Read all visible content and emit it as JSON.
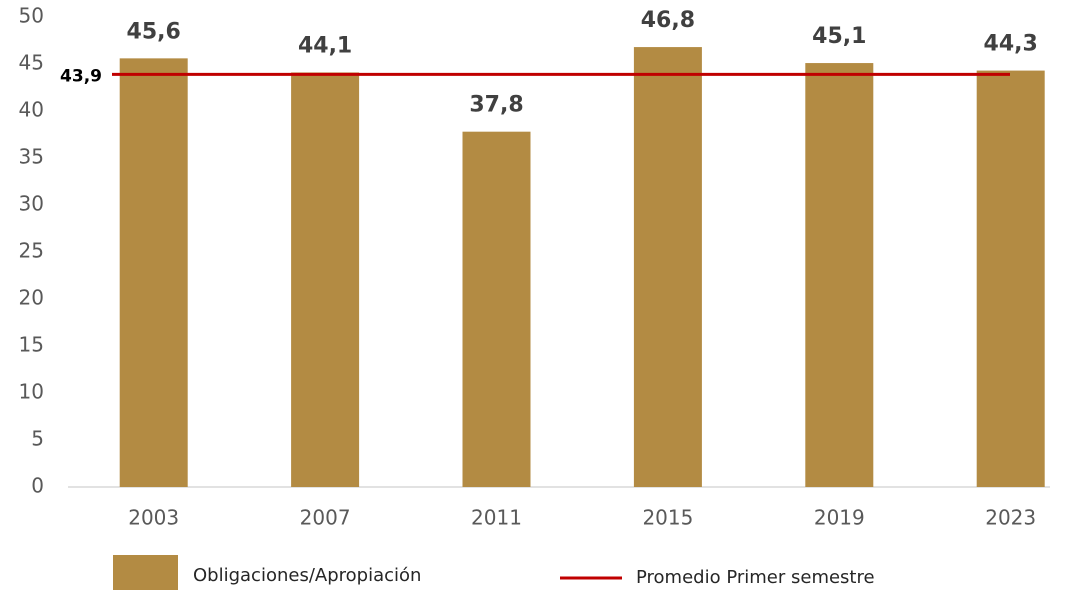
{
  "chart_data": {
    "type": "bar",
    "categories": [
      "2003",
      "2007",
      "2011",
      "2015",
      "2019",
      "2023"
    ],
    "series": [
      {
        "name": "Obligaciones/Apropiación",
        "color": "#b38b43",
        "values": [
          45.6,
          44.1,
          37.8,
          46.8,
          45.1,
          44.3
        ],
        "value_labels": [
          "45,6",
          "44,1",
          "37,8",
          "46,8",
          "45,1",
          "44,3"
        ]
      }
    ],
    "reference_line": {
      "name": "Promedio Primer semestre",
      "value": 43.9,
      "label": "43,9",
      "color": "#c00000"
    },
    "ylim": [
      0,
      50
    ],
    "yticks": [
      0,
      5,
      10,
      15,
      20,
      25,
      30,
      35,
      40,
      45,
      50
    ],
    "grid": false
  }
}
